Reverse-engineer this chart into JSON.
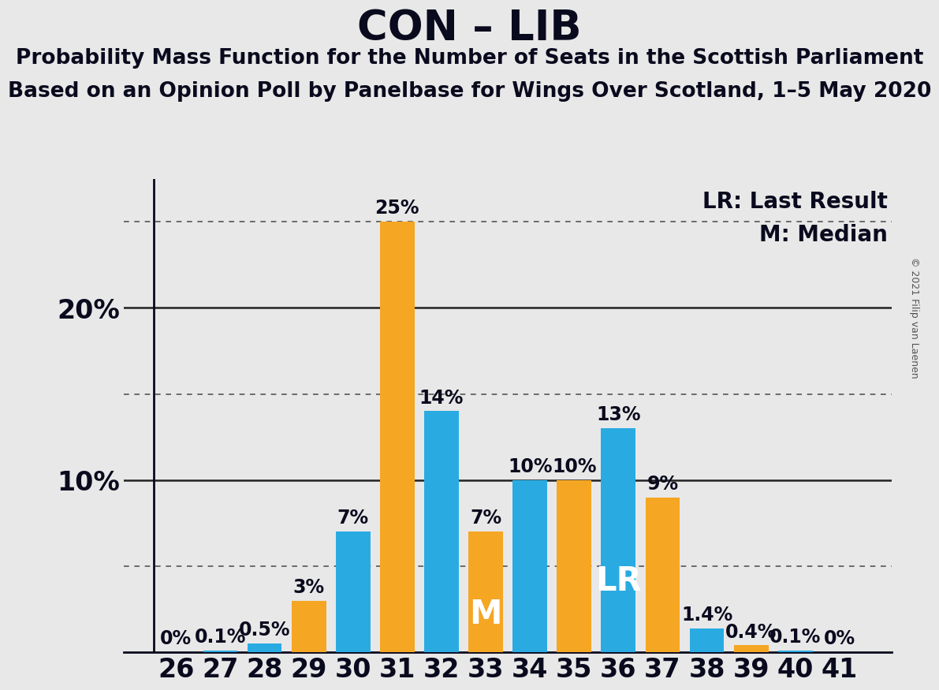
{
  "title": "CON – LIB",
  "subtitle1": "Probability Mass Function for the Number of Seats in the Scottish Parliament",
  "subtitle2": "Based on an Opinion Poll by Panelbase for Wings Over Scotland, 1–5 May 2020",
  "copyright": "© 2021 Filip van Laenen",
  "legend1": "LR: Last Result",
  "legend2": "M: Median",
  "seats": [
    26,
    27,
    28,
    29,
    30,
    31,
    32,
    33,
    34,
    35,
    36,
    37,
    38,
    39,
    40,
    41
  ],
  "values": [
    0,
    0.1,
    0.5,
    3,
    7,
    25,
    14,
    7,
    10,
    10,
    13,
    9,
    1.4,
    0.4,
    0.1,
    0
  ],
  "colors": [
    "#F5A623",
    "#29ABE2",
    "#29ABE2",
    "#F5A623",
    "#29ABE2",
    "#F5A623",
    "#29ABE2",
    "#F5A623",
    "#29ABE2",
    "#F5A623",
    "#29ABE2",
    "#F5A623",
    "#29ABE2",
    "#F5A623",
    "#29ABE2",
    "#F5A623"
  ],
  "labels": [
    "0%",
    "0.1%",
    "0.5%",
    "3%",
    "7%",
    "25%",
    "14%",
    "7%",
    "10%",
    "10%",
    "13%",
    "9%",
    "1.4%",
    "0.4%",
    "0.1%",
    "0%"
  ],
  "median_seat": 33,
  "lr_seat": 36,
  "background_color": "#E8E8E8",
  "ylim_max": 27.5,
  "dotted_lines": [
    5,
    15,
    25
  ],
  "solid_lines": [
    10,
    20
  ],
  "ytick_positions": [
    10,
    20
  ],
  "ytick_labels": [
    "10%",
    "20%"
  ],
  "title_fontsize": 38,
  "subtitle_fontsize": 19,
  "axis_tick_fontsize": 24,
  "bar_label_fontsize": 17,
  "legend_fontsize": 20,
  "inner_label_fontsize": 30
}
